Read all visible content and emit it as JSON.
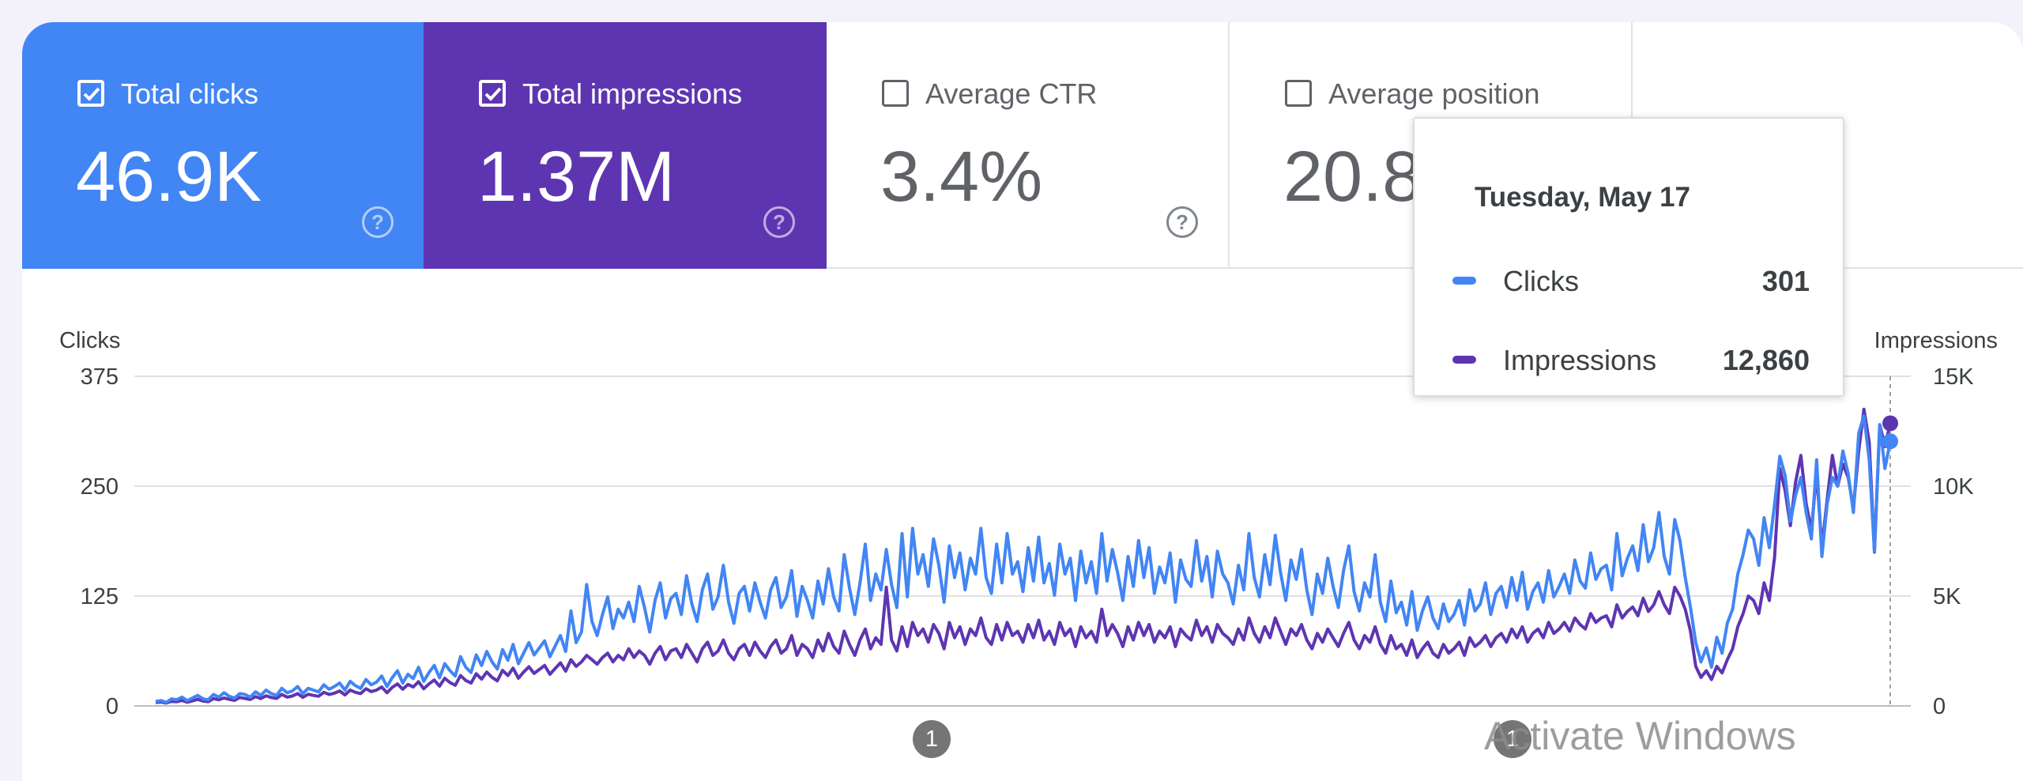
{
  "cards": [
    {
      "label": "Total clicks",
      "value": "46.9K",
      "checked": true,
      "help": "?"
    },
    {
      "label": "Total impressions",
      "value": "1.37M",
      "checked": true,
      "help": "?"
    },
    {
      "label": "Average CTR",
      "value": "3.4%",
      "checked": false,
      "help": "?"
    },
    {
      "label": "Average position",
      "value": "20.8",
      "checked": false,
      "help": "?"
    }
  ],
  "colors": {
    "clicks": "#4285f4",
    "impressions": "#5e35b1",
    "grid": "#e0e0e0",
    "annotation": "#757575"
  },
  "tooltip": {
    "date": "Tuesday, May 17",
    "rows": [
      {
        "name": "Clicks",
        "value": "301"
      },
      {
        "name": "Impressions",
        "value": "12,860"
      }
    ]
  },
  "annotations": [
    "1",
    "1"
  ],
  "watermark": "Activate Windows",
  "chart_data": {
    "type": "line",
    "left_axis_title": "Clicks",
    "right_axis_title": "Impressions",
    "left_ticks": [
      "375",
      "250",
      "125",
      "0"
    ],
    "right_ticks": [
      "15K",
      "10K",
      "5K",
      "0"
    ],
    "y_left_range": [
      0,
      375
    ],
    "y_right_range": [
      0,
      15000
    ],
    "grid": true,
    "series": [
      {
        "name": "Clicks",
        "values": [
          5,
          6,
          4,
          8,
          7,
          10,
          6,
          9,
          12,
          8,
          7,
          13,
          10,
          15,
          11,
          9,
          14,
          13,
          10,
          16,
          12,
          18,
          14,
          12,
          20,
          15,
          17,
          22,
          14,
          20,
          18,
          16,
          24,
          19,
          22,
          26,
          18,
          28,
          23,
          20,
          30,
          24,
          27,
          34,
          22,
          32,
          40,
          26,
          36,
          31,
          44,
          28,
          38,
          46,
          32,
          48,
          40,
          34,
          56,
          44,
          38,
          58,
          46,
          62,
          50,
          42,
          64,
          52,
          70,
          48,
          60,
          72,
          58,
          66,
          74,
          56,
          68,
          80,
          62,
          108,
          72,
          84,
          138,
          96,
          80,
          104,
          124,
          88,
          110,
          100,
          118,
          96,
          136,
          112,
          84,
          120,
          140,
          100,
          122,
          128,
          104,
          148,
          116,
          96,
          132,
          150,
          110,
          124,
          160,
          118,
          94,
          128,
          136,
          108,
          140,
          118,
          100,
          132,
          146,
          112,
          124,
          154,
          102,
          136,
          120,
          100,
          142,
          116,
          156,
          124,
          108,
          172,
          134,
          104,
          140,
          184,
          120,
          150,
          132,
          178,
          138,
          112,
          196,
          124,
          202,
          150,
          172,
          136,
          190,
          160,
          118,
          182,
          146,
          174,
          132,
          168,
          150,
          202,
          146,
          128,
          184,
          140,
          196,
          150,
          164,
          130,
          180,
          142,
          192,
          140,
          162,
          126,
          184,
          150,
          168,
          120,
          176,
          140,
          164,
          128,
          196,
          142,
          178,
          152,
          120,
          170,
          136,
          188,
          146,
          180,
          128,
          158,
          140,
          174,
          118,
          166,
          144,
          136,
          188,
          142,
          170,
          124,
          176,
          150,
          140,
          116,
          160,
          132,
          196,
          146,
          124,
          172,
          138,
          194,
          152,
          120,
          166,
          144,
          178,
          132,
          104,
          150,
          128,
          168,
          136,
          112,
          154,
          182,
          130,
          108,
          140,
          124,
          172,
          118,
          96,
          142,
          106,
          118,
          92,
          130,
          86,
          108,
          124,
          100,
          88,
          116,
          96,
          104,
          120,
          92,
          132,
          108,
          116,
          140,
          104,
          128,
          136,
          112,
          146,
          120,
          152,
          110,
          130,
          140,
          118,
          154,
          124,
          136,
          150,
          128,
          166,
          142,
          134,
          174,
          144,
          156,
          160,
          132,
          196,
          148,
          168,
          182,
          154,
          206,
          164,
          180,
          220,
          170,
          150,
          212,
          188,
          146,
          112,
          72,
          50,
          66,
          44,
          78,
          60,
          94,
          110,
          150,
          172,
          200,
          190,
          160,
          214,
          180,
          230,
          284,
          262,
          210,
          240,
          260,
          220,
          190,
          280,
          170,
          230,
          260,
          250,
          290,
          264,
          220,
          310,
          330,
          280,
          176,
          320,
          270,
          301
        ]
      },
      {
        "name": "Impressions",
        "values": [
          150,
          180,
          130,
          210,
          190,
          250,
          170,
          230,
          300,
          220,
          190,
          330,
          280,
          360,
          300,
          250,
          380,
          340,
          290,
          420,
          330,
          460,
          380,
          340,
          520,
          400,
          450,
          560,
          390,
          530,
          480,
          440,
          620,
          520,
          580,
          680,
          500,
          720,
          620,
          560,
          780,
          650,
          720,
          860,
          600,
          840,
          1000,
          760,
          980,
          860,
          1100,
          780,
          1000,
          1180,
          900,
          1260,
          1060,
          940,
          1380,
          1160,
          1040,
          1460,
          1220,
          1540,
          1300,
          1140,
          1620,
          1380,
          1720,
          1260,
          1540,
          1780,
          1480,
          1660,
          1840,
          1440,
          1700,
          1960,
          1580,
          2100,
          1800,
          2000,
          2300,
          2100,
          1900,
          2200,
          2400,
          2000,
          2300,
          2100,
          2600,
          2200,
          2500,
          2300,
          1900,
          2400,
          2700,
          2100,
          2500,
          2600,
          2200,
          2800,
          2400,
          2000,
          2600,
          2900,
          2300,
          2500,
          3000,
          2400,
          2100,
          2600,
          2800,
          2300,
          2900,
          2500,
          2200,
          2700,
          3000,
          2400,
          2600,
          3200,
          2300,
          2800,
          2600,
          2200,
          3000,
          2500,
          3300,
          2700,
          2400,
          3400,
          2800,
          2300,
          3000,
          3500,
          2600,
          3100,
          2800,
          5400,
          3000,
          2500,
          3600,
          2700,
          3800,
          3200,
          3500,
          2900,
          3700,
          3300,
          2600,
          3800,
          3100,
          3600,
          2800,
          3500,
          3200,
          4000,
          3100,
          2800,
          3700,
          3000,
          3800,
          3200,
          3400,
          2900,
          3700,
          3100,
          3900,
          3000,
          3400,
          2800,
          3800,
          3200,
          3500,
          2700,
          3600,
          3100,
          3400,
          2900,
          4400,
          3200,
          3700,
          3300,
          2700,
          3600,
          3000,
          3800,
          3200,
          3700,
          2900,
          3400,
          3100,
          3600,
          2700,
          3500,
          3200,
          3000,
          3900,
          3200,
          3600,
          2900,
          3700,
          3300,
          3100,
          2800,
          3500,
          3000,
          4000,
          3300,
          2900,
          3600,
          3100,
          4000,
          3400,
          2800,
          3500,
          3200,
          3700,
          3000,
          2600,
          3300,
          2900,
          3500,
          3100,
          2700,
          3300,
          3800,
          3000,
          2600,
          3200,
          2900,
          3600,
          2800,
          2400,
          3200,
          2600,
          2800,
          2300,
          3000,
          2200,
          2600,
          2900,
          2400,
          2200,
          2800,
          2400,
          2600,
          2900,
          2300,
          3100,
          2700,
          2900,
          3200,
          2700,
          3100,
          3300,
          2900,
          3500,
          3100,
          3600,
          2900,
          3300,
          3500,
          3100,
          3800,
          3300,
          3500,
          3800,
          3400,
          4000,
          3700,
          3500,
          4200,
          3800,
          4000,
          4100,
          3600,
          4600,
          4000,
          4300,
          4500,
          4100,
          4900,
          4300,
          4600,
          5200,
          4600,
          4200,
          5400,
          5000,
          4400,
          3400,
          1800,
          1300,
          1600,
          1200,
          1800,
          1500,
          2100,
          2600,
          3600,
          4200,
          5000,
          4800,
          4200,
          5600,
          4800,
          6800,
          10800,
          9800,
          8200,
          10200,
          11400,
          9200,
          8000,
          10600,
          7200,
          9400,
          11400,
          10000,
          11000,
          10400,
          9000,
          11600,
          13500,
          12000,
          7000,
          12800,
          11800,
          12860
        ]
      }
    ]
  }
}
